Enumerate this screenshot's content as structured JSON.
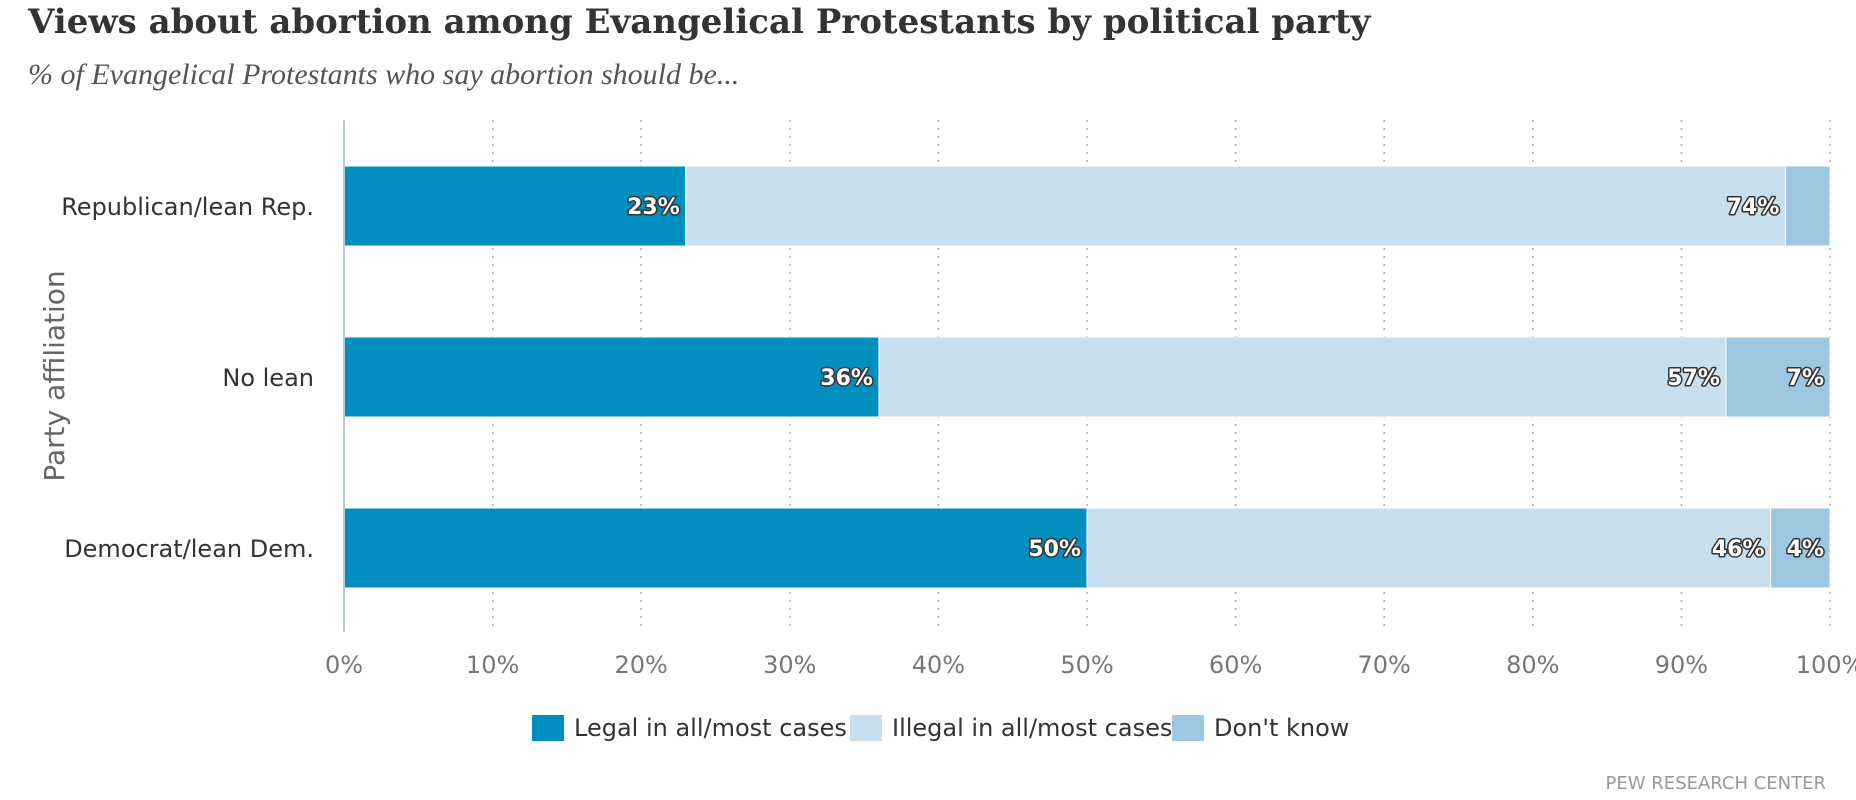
{
  "chart_data": {
    "type": "bar",
    "orientation": "horizontal",
    "stacked": true,
    "title": "Views about abortion among Evangelical Protestants by political party",
    "subtitle": "% of Evangelical Protestants who say abortion should be...",
    "ylabel": "Party affiliation",
    "xlabel": "",
    "xlim": [
      0,
      100
    ],
    "x_ticks": [
      "0%",
      "10%",
      "20%",
      "30%",
      "40%",
      "50%",
      "60%",
      "70%",
      "80%",
      "90%",
      "100%"
    ],
    "grid": "vertical dotted",
    "legend_position": "bottom",
    "categories": [
      "Republican/lean Rep.",
      "No lean",
      "Democrat/lean Dem."
    ],
    "series": [
      {
        "name": "Legal in all/most cases",
        "color": "#008fbf",
        "values": [
          23,
          36,
          50
        ],
        "labels": [
          "23%",
          "36%",
          "50%"
        ]
      },
      {
        "name": "Illegal in all/most cases",
        "color": "#c9dfee",
        "values": [
          74,
          57,
          46
        ],
        "labels": [
          "74%",
          "57%",
          "46%"
        ]
      },
      {
        "name": "Don't know",
        "color": "#9dc6e0",
        "values": [
          3,
          7,
          4
        ],
        "labels": [
          "",
          "7%",
          "4%"
        ]
      }
    ],
    "source": "PEW RESEARCH CENTER"
  }
}
